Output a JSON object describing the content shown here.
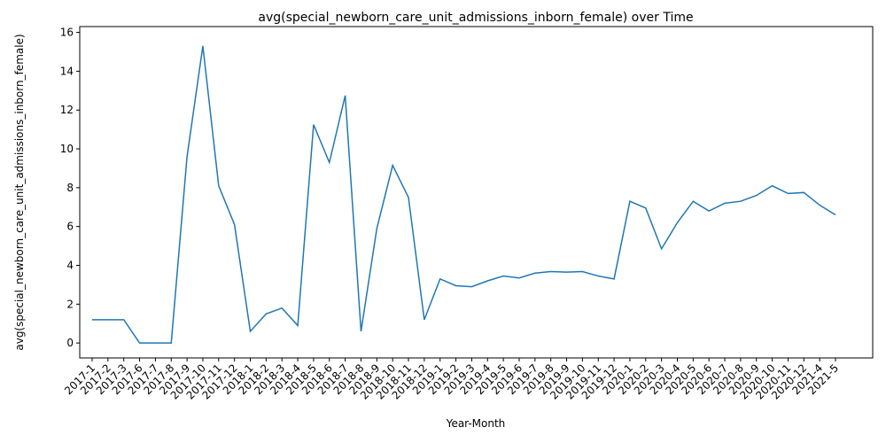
{
  "chart_data": {
    "type": "line",
    "title": "avg(special_newborn_care_unit_admissions_inborn_female) over Time",
    "x_label": "Year-Month",
    "y_label": "avg(special_newborn_care_unit_admissions_inborn_female)",
    "categories": [
      "2017-1",
      "2017-2",
      "2017-3",
      "2017-6",
      "2017-7",
      "2017-8",
      "2017-9",
      "2017-10",
      "2017-11",
      "2017-12",
      "2018-1",
      "2018-2",
      "2018-3",
      "2018-4",
      "2018-5",
      "2018-6",
      "2018-7",
      "2018-8",
      "2018-9",
      "2018-10",
      "2018-11",
      "2018-12",
      "2019-1",
      "2019-2",
      "2019-3",
      "2019-4",
      "2019-5",
      "2019-6",
      "2019-7",
      "2019-8",
      "2019-9",
      "2019-10",
      "2019-11",
      "2019-12",
      "2020-1",
      "2020-2",
      "2020-3",
      "2020-4",
      "2020-5",
      "2020-6",
      "2020-7",
      "2020-8",
      "2020-9",
      "2020-10",
      "2020-11",
      "2020-12",
      "2021-4",
      "2021-5"
    ],
    "series": [
      {
        "name": "avg(special_newborn_care_unit_admissions_inborn_female)",
        "color": "#1f77b4",
        "values": [
          1.2,
          1.2,
          1.2,
          0,
          0,
          0,
          9.6,
          15.3,
          8.1,
          6.1,
          0.6,
          1.5,
          1.8,
          0.9,
          11.25,
          9.3,
          12.75,
          0.6,
          5.9,
          9.15,
          7.5,
          1.2,
          3.3,
          2.95,
          2.9,
          3.2,
          3.45,
          3.35,
          3.6,
          3.68,
          3.65,
          3.68,
          3.45,
          3.3,
          7.3,
          6.95,
          4.85,
          6.2,
          7.3,
          6.8,
          7.2,
          7.3,
          7.6,
          8.1,
          7.7,
          7.75,
          7.1,
          6.6
        ]
      }
    ],
    "ylim": [
      -0.77,
      16.3
    ],
    "yticks": [
      0,
      2,
      4,
      6,
      8,
      10,
      12,
      14,
      16
    ],
    "grid": false
  }
}
